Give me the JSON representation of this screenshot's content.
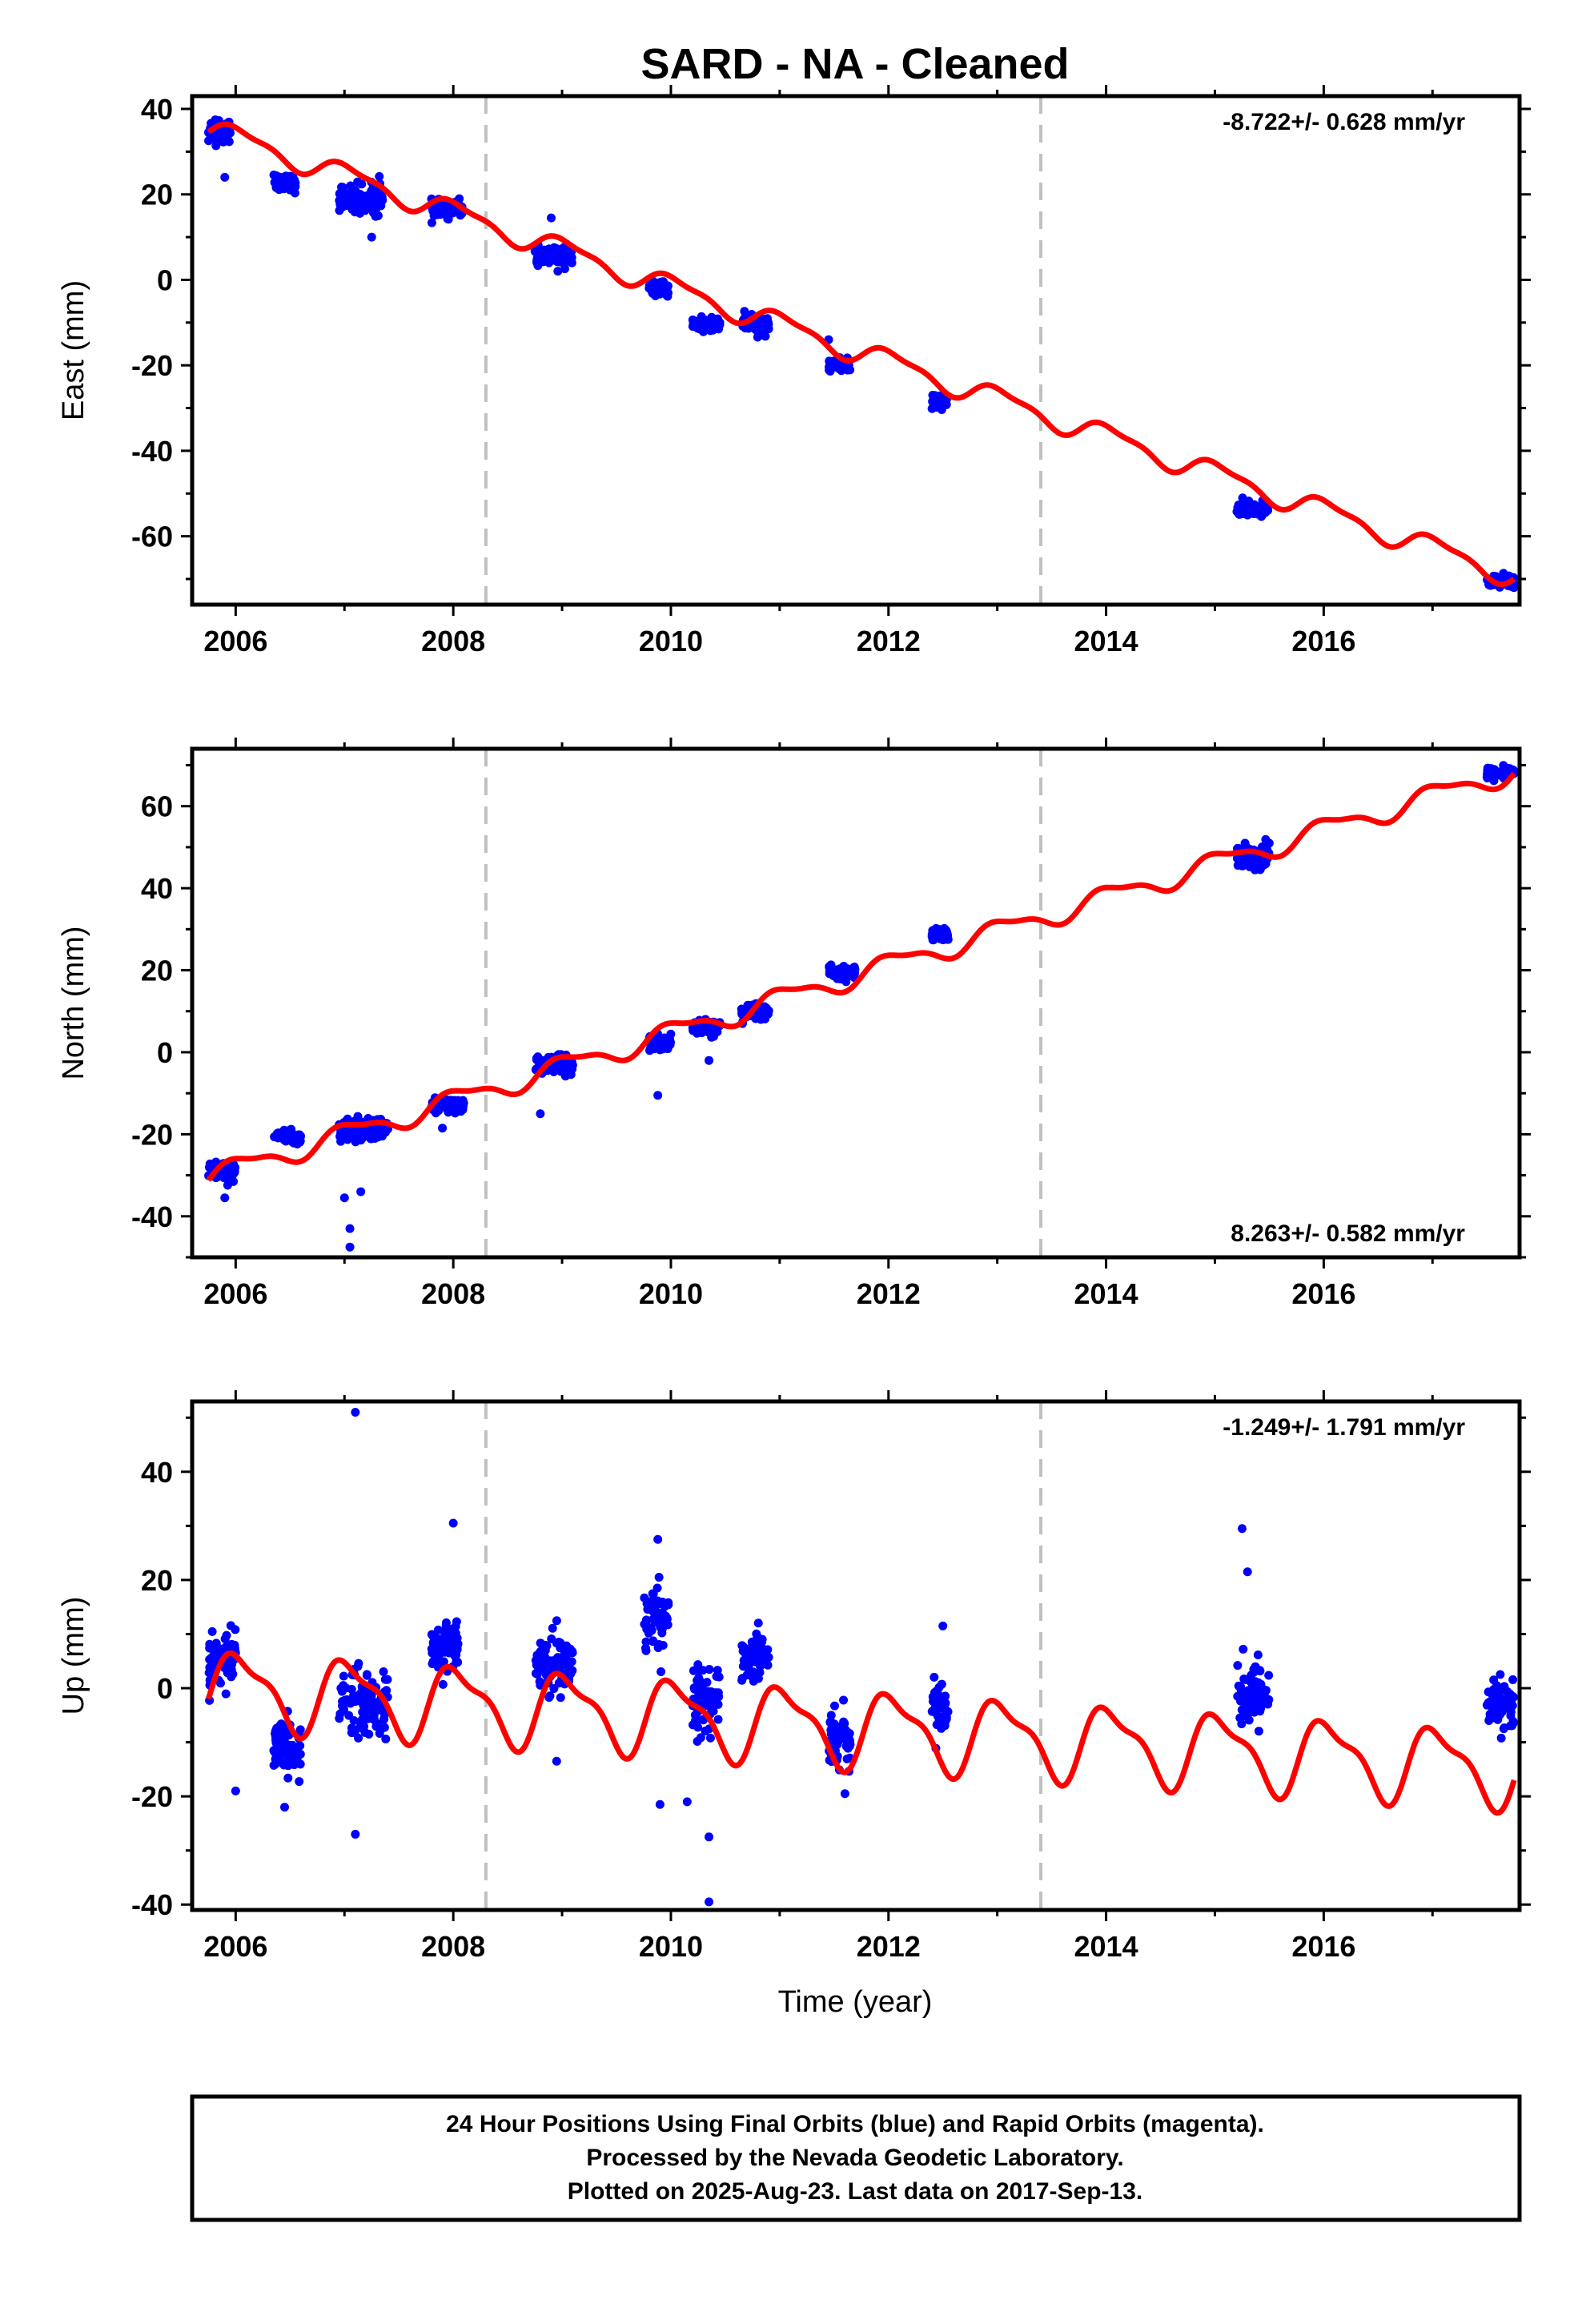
{
  "title": "SARD  - NA - Cleaned",
  "xlabel": "Time (year)",
  "footer": {
    "line1": "24 Hour Positions Using Final Orbits (blue) and Rapid Orbits (magenta).",
    "line2": "Processed by the Nevada Geodetic Laboratory.",
    "line3": "Plotted on 2025-Aug-23. Last data on 2017-Sep-13."
  },
  "colors": {
    "data": "#0000ff",
    "model": "#ff0000",
    "breaks": "#c0c0c0"
  },
  "chart_data": [
    {
      "type": "scatter",
      "ylabel": "East (mm)",
      "rate": "-8.722+/- 0.628 mm/yr",
      "xlim": [
        2005.6,
        2017.8
      ],
      "ylim": [
        -76,
        43
      ],
      "xticks": [
        2006,
        2008,
        2010,
        2012,
        2014,
        2016
      ],
      "yticks": [
        -60,
        -40,
        -20,
        0,
        20,
        40
      ],
      "equipment_changes": [
        2008.3,
        2013.4
      ],
      "model": {
        "intercept": 35.0,
        "rate": -8.722,
        "annual_amp": 2.5
      },
      "clusters": [
        {
          "x": [
            2005.75,
            2005.95
          ],
          "y": 35,
          "spread": 2.5
        },
        {
          "x": [
            2006.35,
            2006.55
          ],
          "y": 22.5,
          "spread": 1.6
        },
        {
          "x": [
            2006.95,
            2007.35
          ],
          "y": 19,
          "spread": 3
        },
        {
          "x": [
            2007.8,
            2008.1
          ],
          "y": 16.5,
          "spread": 1.5
        },
        {
          "x": [
            2008.75,
            2009.1
          ],
          "y": 5.5,
          "spread": 2
        },
        {
          "x": [
            2009.8,
            2009.98
          ],
          "y": -2,
          "spread": 1.2
        },
        {
          "x": [
            2010.2,
            2010.45
          ],
          "y": -10.5,
          "spread": 1.5
        },
        {
          "x": [
            2010.65,
            2010.9
          ],
          "y": -10.5,
          "spread": 1.7
        },
        {
          "x": [
            2011.45,
            2011.65
          ],
          "y": -20,
          "spread": 1.2
        },
        {
          "x": [
            2012.4,
            2012.55
          ],
          "y": -28.5,
          "spread": 1.5
        },
        {
          "x": [
            2015.2,
            2015.5
          ],
          "y": -53.5,
          "spread": 1.3
        },
        {
          "x": [
            2017.5,
            2017.75
          ],
          "y": -70.5,
          "spread": 1.2
        }
      ],
      "outliers": [
        [
          2005.9,
          24
        ],
        [
          2011.45,
          -14
        ],
        [
          2007.25,
          10
        ],
        [
          2008.9,
          14.5
        ]
      ]
    },
    {
      "type": "scatter",
      "ylabel": "North (mm)",
      "rate": "8.263+/- 0.582 mm/yr",
      "xlim": [
        2005.6,
        2017.8
      ],
      "ylim": [
        -50,
        74
      ],
      "xticks": [
        2006,
        2008,
        2010,
        2012,
        2014,
        2016
      ],
      "yticks": [
        -40,
        -20,
        0,
        20,
        40,
        60
      ],
      "equipment_changes": [
        2008.3,
        2013.4
      ],
      "model": {
        "intercept": -30.0,
        "rate": 8.263,
        "annual_amp": 2.5
      },
      "clusters": [
        {
          "x": [
            2005.75,
            2006.0
          ],
          "y": -29,
          "spread": 2
        },
        {
          "x": [
            2006.35,
            2006.6
          ],
          "y": -20.5,
          "spread": 1.2
        },
        {
          "x": [
            2006.95,
            2007.4
          ],
          "y": -19,
          "spread": 2.5
        },
        {
          "x": [
            2007.8,
            2008.1
          ],
          "y": -13,
          "spread": 1.5
        },
        {
          "x": [
            2008.75,
            2009.1
          ],
          "y": -3,
          "spread": 1.8
        },
        {
          "x": [
            2009.8,
            2010.0
          ],
          "y": 2.5,
          "spread": 1.5
        },
        {
          "x": [
            2010.2,
            2010.45
          ],
          "y": 6,
          "spread": 1.5
        },
        {
          "x": [
            2010.65,
            2010.9
          ],
          "y": 10,
          "spread": 1.5
        },
        {
          "x": [
            2011.45,
            2011.7
          ],
          "y": 19.5,
          "spread": 1.3
        },
        {
          "x": [
            2012.4,
            2012.55
          ],
          "y": 28.5,
          "spread": 1.5
        },
        {
          "x": [
            2015.2,
            2015.5
          ],
          "y": 48,
          "spread": 2.5
        },
        {
          "x": [
            2017.5,
            2017.75
          ],
          "y": 68,
          "spread": 1.2
        }
      ],
      "outliers": [
        [
          2005.9,
          -35.5
        ],
        [
          2007.0,
          -35.5
        ],
        [
          2007.05,
          -43
        ],
        [
          2007.05,
          -47.5
        ],
        [
          2007.15,
          -34
        ],
        [
          2008.8,
          -15
        ],
        [
          2009.88,
          -10.5
        ],
        [
          2010.35,
          -2
        ],
        [
          2007.9,
          -18.5
        ]
      ]
    },
    {
      "type": "scatter",
      "ylabel": "Up (mm)",
      "rate": "-1.249+/- 1.791 mm/yr",
      "xlim": [
        2005.6,
        2017.8
      ],
      "ylim": [
        -41,
        53
      ],
      "xticks": [
        2006,
        2008,
        2010,
        2012,
        2014,
        2016
      ],
      "yticks": [
        -40,
        -20,
        0,
        20,
        40
      ],
      "equipment_changes": [
        2008.3,
        2013.4
      ],
      "model": {
        "intercept": 0.0,
        "rate": -1.249,
        "annual_amp": 6.5
      },
      "clusters": [
        {
          "x": [
            2005.75,
            2006.0
          ],
          "y": 5,
          "spread": 5
        },
        {
          "x": [
            2006.35,
            2006.6
          ],
          "y": -11,
          "spread": 4.5
        },
        {
          "x": [
            2006.95,
            2007.4
          ],
          "y": -3,
          "spread": 6
        },
        {
          "x": [
            2007.8,
            2008.05
          ],
          "y": 7,
          "spread": 3.5
        },
        {
          "x": [
            2008.75,
            2009.1
          ],
          "y": 4,
          "spread": 4.5
        },
        {
          "x": [
            2009.75,
            2009.98
          ],
          "y": 13,
          "spread": 5
        },
        {
          "x": [
            2010.2,
            2010.45
          ],
          "y": -2,
          "spread": 5
        },
        {
          "x": [
            2010.65,
            2010.9
          ],
          "y": 6,
          "spread": 4
        },
        {
          "x": [
            2011.45,
            2011.65
          ],
          "y": -9,
          "spread": 4
        },
        {
          "x": [
            2012.4,
            2012.55
          ],
          "y": -3,
          "spread": 4
        },
        {
          "x": [
            2015.2,
            2015.5
          ],
          "y": -1,
          "spread": 5
        },
        {
          "x": [
            2017.5,
            2017.75
          ],
          "y": -3,
          "spread": 5
        }
      ],
      "outliers": [
        [
          2007.1,
          51
        ],
        [
          2008.0,
          30.5
        ],
        [
          2010.35,
          -39.5
        ],
        [
          2015.25,
          29.5
        ],
        [
          2015.3,
          21.5
        ],
        [
          2007.1,
          -27
        ],
        [
          2006.0,
          -19
        ],
        [
          2010.35,
          -27.5
        ],
        [
          2009.88,
          27.5
        ],
        [
          2009.9,
          -21.5
        ],
        [
          2010.15,
          -21
        ],
        [
          2006.45,
          -22
        ],
        [
          2008.95,
          -13.5
        ],
        [
          2012.5,
          11.5
        ],
        [
          2011.6,
          -19.5
        ]
      ]
    }
  ]
}
